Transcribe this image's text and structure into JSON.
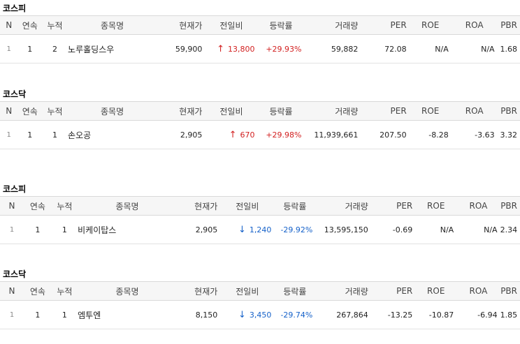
{
  "headers": [
    "N",
    "연속",
    "누적",
    "종목명",
    "현재가",
    "전일비",
    "등락률",
    "거래량",
    "PER",
    "ROE",
    "ROA",
    "PBR"
  ],
  "sections": [
    {
      "market": "코스피",
      "row": {
        "n": "1",
        "consecutive": "1",
        "cumulative": "2",
        "name": "노루홀딩스우",
        "price": "59,900",
        "change_dir": "up",
        "change": "13,800",
        "rate": "+29.93%",
        "volume": "59,882",
        "per": "72.08",
        "roe": "N/A",
        "roa": "N/A",
        "pbr": "1.68"
      }
    },
    {
      "market": "코스닥",
      "row": {
        "n": "1",
        "consecutive": "1",
        "cumulative": "1",
        "name": "손오공",
        "price": "2,905",
        "change_dir": "up",
        "change": "670",
        "rate": "+29.98%",
        "volume": "11,939,661",
        "per": "207.50",
        "roe": "-8.28",
        "roa": "-3.63",
        "pbr": "3.32"
      }
    },
    {
      "market": "코스피",
      "row": {
        "n": "1",
        "consecutive": "1",
        "cumulative": "1",
        "name": "비케이탑스",
        "price": "2,905",
        "change_dir": "down",
        "change": "1,240",
        "rate": "-29.92%",
        "volume": "13,595,150",
        "per": "-0.69",
        "roe": "N/A",
        "roa": "N/A",
        "pbr": "2.34"
      }
    },
    {
      "market": "코스닥",
      "row": {
        "n": "1",
        "consecutive": "1",
        "cumulative": "1",
        "name": "엠투엔",
        "price": "8,150",
        "change_dir": "down",
        "change": "3,450",
        "rate": "-29.74%",
        "volume": "267,864",
        "per": "-13.25",
        "roe": "-10.87",
        "roa": "-6.94",
        "pbr": "1.85"
      }
    }
  ],
  "colors": {
    "up": "#d21f1f",
    "down": "#1561c9",
    "header_bg": "#f6f6f6"
  },
  "icons": {
    "up": "arrow-up-icon",
    "down": "arrow-down-icon"
  }
}
